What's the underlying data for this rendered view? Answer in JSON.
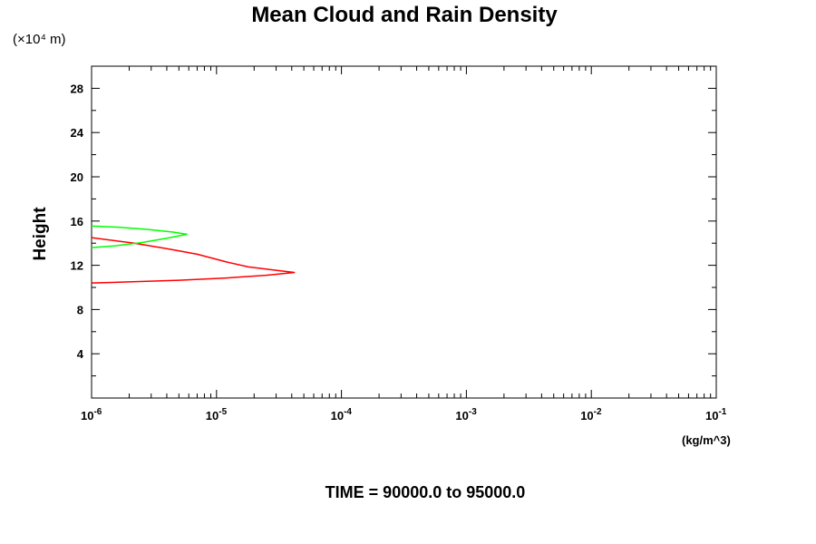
{
  "chart_data": {
    "type": "line",
    "title": "Mean Cloud and Rain Density",
    "ylabel": "Height",
    "y_scale_label": "(×10⁴ m)",
    "xlabel": "(kg/m^3)",
    "x_scale": "log",
    "xlim": [
      1e-06,
      0.1
    ],
    "ylim": [
      0,
      30
    ],
    "x_tick_exponents": [
      -6,
      -5,
      -4,
      -3,
      -2,
      -1
    ],
    "x_tick_base": "10",
    "y_ticks": [
      4,
      8,
      12,
      16,
      20,
      24,
      28
    ],
    "grid": false,
    "series": [
      {
        "color": "#ff0000",
        "points": [
          [
            1e-06,
            10.4
          ],
          [
            2e-06,
            10.5
          ],
          [
            5e-06,
            10.65
          ],
          [
            1.2e-05,
            10.85
          ],
          [
            2.5e-05,
            11.1
          ],
          [
            4.2e-05,
            11.35
          ],
          [
            3e-05,
            11.55
          ],
          [
            1.8e-05,
            11.85
          ],
          [
            1.2e-05,
            12.3
          ],
          [
            7e-06,
            13.0
          ],
          [
            4e-06,
            13.5
          ],
          [
            2.2e-06,
            14.0
          ],
          [
            1e-06,
            14.5
          ]
        ]
      },
      {
        "color": "#00ff00",
        "points": [
          [
            1e-06,
            13.6
          ],
          [
            1.5e-06,
            13.75
          ],
          [
            2.5e-06,
            14.05
          ],
          [
            4e-06,
            14.45
          ],
          [
            5.8e-06,
            14.8
          ],
          [
            4.5e-06,
            15.0
          ],
          [
            2.8e-06,
            15.25
          ],
          [
            1.6e-06,
            15.45
          ],
          [
            1e-06,
            15.55
          ]
        ]
      }
    ]
  },
  "footer": {
    "time_label": "TIME = 90000.0 to 95000.0"
  }
}
